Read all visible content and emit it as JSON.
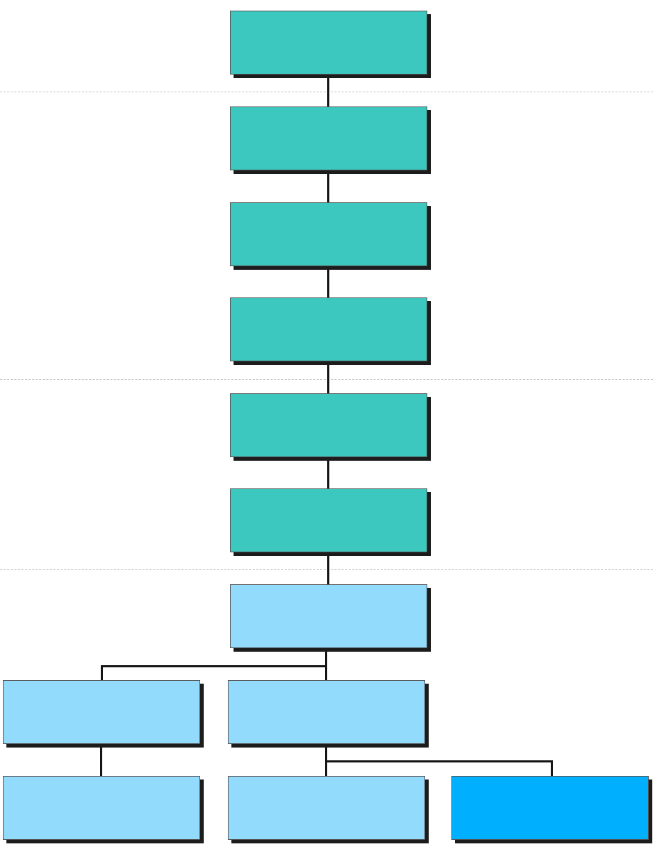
{
  "colors": {
    "teal": "#3cc7bf",
    "light_blue": "#92dbfd",
    "bright_blue": "#00b0ff",
    "shadow": "#1c1c1c",
    "connector": "#151515",
    "divider": "#c4c4c4"
  },
  "nodes": [
    {
      "id": "n1",
      "color": "teal"
    },
    {
      "id": "n2",
      "color": "teal"
    },
    {
      "id": "n3",
      "color": "teal"
    },
    {
      "id": "n4",
      "color": "teal"
    },
    {
      "id": "n5",
      "color": "teal"
    },
    {
      "id": "n6",
      "color": "teal"
    },
    {
      "id": "n7",
      "color": "light_blue"
    },
    {
      "id": "n8",
      "color": "light_blue"
    },
    {
      "id": "n9",
      "color": "light_blue"
    },
    {
      "id": "n10",
      "color": "light_blue"
    },
    {
      "id": "n11",
      "color": "light_blue"
    },
    {
      "id": "n12",
      "color": "bright_blue"
    }
  ],
  "edges": [
    [
      "n1",
      "n2"
    ],
    [
      "n2",
      "n3"
    ],
    [
      "n3",
      "n4"
    ],
    [
      "n4",
      "n5"
    ],
    [
      "n5",
      "n6"
    ],
    [
      "n6",
      "n7"
    ],
    [
      "n7",
      "n8"
    ],
    [
      "n7",
      "n9"
    ],
    [
      "n8",
      "n10"
    ],
    [
      "n9",
      "n11"
    ],
    [
      "n9",
      "n12"
    ]
  ]
}
